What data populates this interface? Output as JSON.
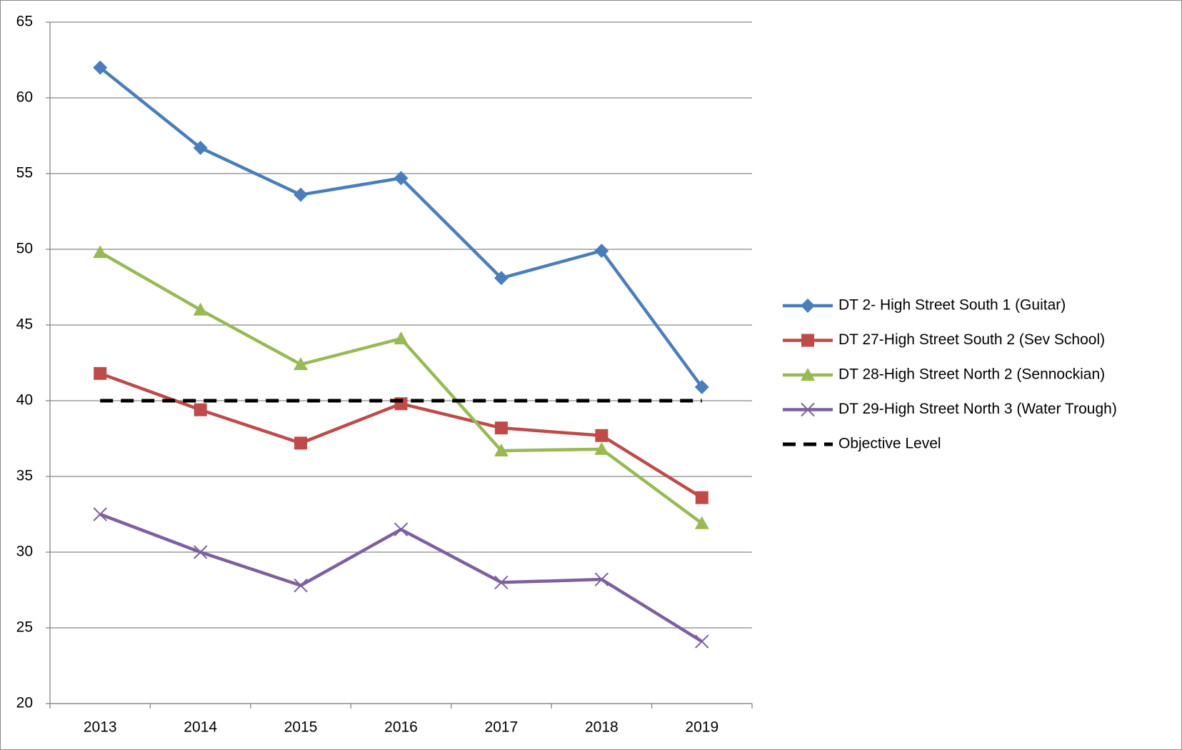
{
  "chart_data": {
    "type": "line",
    "categories": [
      "2013",
      "2014",
      "2015",
      "2016",
      "2017",
      "2018",
      "2019"
    ],
    "series": [
      {
        "name": "DT 2- High Street South 1 (Guitar)",
        "color": "#4a7ebb",
        "marker": "diamond",
        "values": [
          62,
          56.7,
          53.6,
          54.7,
          48.1,
          49.9,
          40.9
        ]
      },
      {
        "name": "DT 27-High Street South 2 (Sev School)",
        "color": "#be4b48",
        "marker": "square",
        "values": [
          41.8,
          39.4,
          37.2,
          39.8,
          38.2,
          37.7,
          33.6
        ]
      },
      {
        "name": "DT 28-High Street North 2 (Sennockian)",
        "color": "#98b954",
        "marker": "triangle",
        "values": [
          49.8,
          46.0,
          42.4,
          44.1,
          36.7,
          36.8,
          31.9
        ]
      },
      {
        "name": "DT 29-High Street North 3 (Water Trough)",
        "color": "#7d60a0",
        "marker": "x",
        "values": [
          32.5,
          30.0,
          27.8,
          31.5,
          28.0,
          28.2,
          24.1
        ]
      },
      {
        "name": "Objective Level",
        "color": "#000000",
        "marker": "none",
        "dashed": true,
        "values": [
          40,
          40,
          40,
          40,
          40,
          40,
          40
        ]
      }
    ],
    "ylim": [
      20,
      65
    ],
    "yticks": [
      20,
      25,
      30,
      35,
      40,
      45,
      50,
      55,
      60,
      65
    ],
    "grid": true,
    "legend": "right"
  }
}
